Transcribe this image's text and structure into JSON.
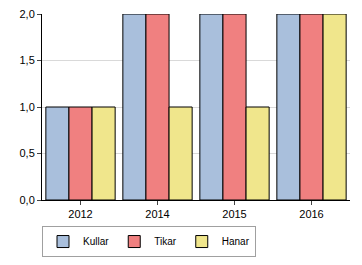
{
  "chart_data": {
    "type": "bar",
    "categories": [
      "2012",
      "2014",
      "2015",
      "2016"
    ],
    "series": [
      {
        "name": "Kullar",
        "color": "#a9bfdc",
        "values": [
          1,
          2,
          2,
          2
        ]
      },
      {
        "name": "Tikar",
        "color": "#f08080",
        "values": [
          1,
          2,
          2,
          2
        ]
      },
      {
        "name": "Hanar",
        "color": "#f0e68c",
        "values": [
          1,
          1,
          1,
          2
        ]
      }
    ],
    "ylim": [
      0,
      2
    ],
    "yticks": [
      {
        "value": 0,
        "label": "0,0"
      },
      {
        "value": 0.5,
        "label": "0,5"
      },
      {
        "value": 1,
        "label": "1,0"
      },
      {
        "value": 1.5,
        "label": "1,5"
      },
      {
        "value": 2,
        "label": "2,0"
      }
    ],
    "grid": true,
    "legend": "bottom left"
  }
}
